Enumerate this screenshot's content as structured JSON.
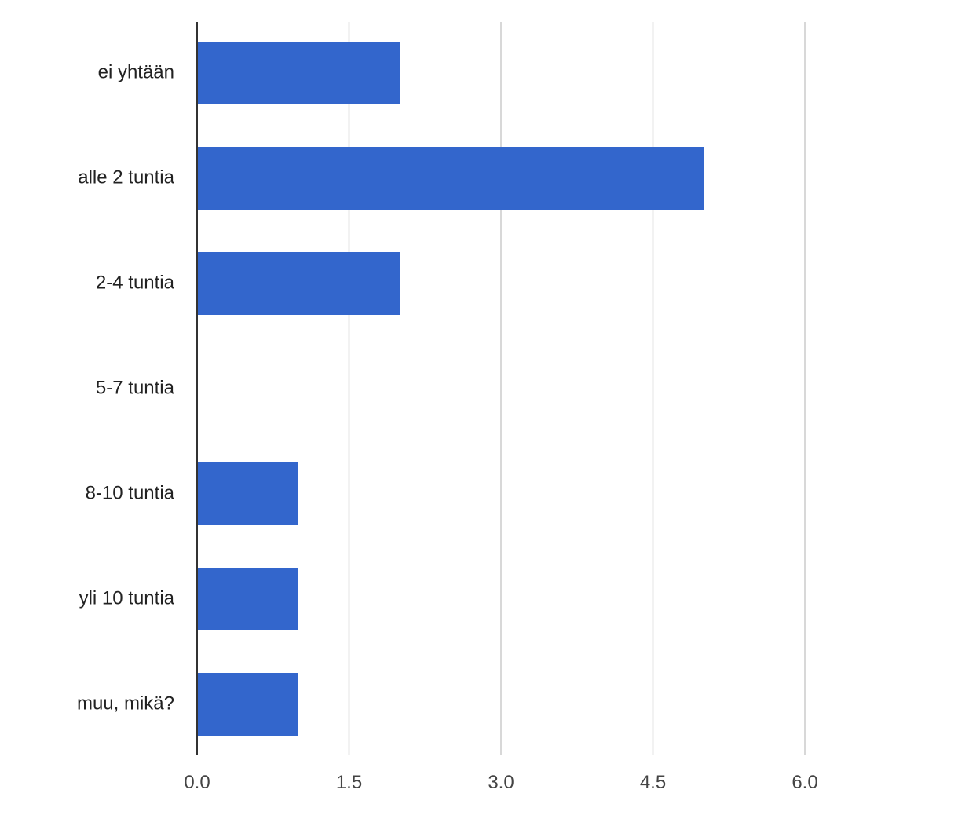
{
  "chart_data": {
    "type": "bar",
    "orientation": "horizontal",
    "title": "",
    "categories": [
      "ei yhtään",
      "alle 2 tuntia",
      "2-4 tuntia",
      "5-7 tuntia",
      "8-10 tuntia",
      "yli 10 tuntia",
      "muu, mikä?"
    ],
    "values": [
      2,
      5,
      2,
      0,
      1,
      1,
      1
    ],
    "x_ticks": [
      "0.0",
      "1.5",
      "3.0",
      "4.5",
      "6.0"
    ],
    "x_tick_values": [
      0,
      1.5,
      3.0,
      4.5,
      6.0
    ],
    "xlim": [
      0,
      7.2
    ],
    "grid": true,
    "bar_color": "#3366cc",
    "grid_color": "#cccccc",
    "axis_color": "#333333"
  }
}
